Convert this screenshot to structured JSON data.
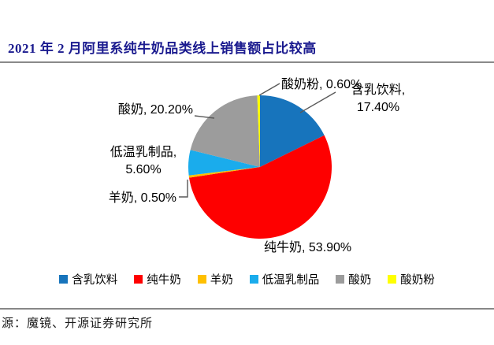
{
  "header": {
    "title": "2021 年 2 月阿里系纯牛奶品类线上销售额占比较高",
    "title_color": "#1b1b8f"
  },
  "chart_data": {
    "type": "pie",
    "title": "2021 年 2 月阿里系纯牛奶品类线上销售额占比较高",
    "categories": [
      "含乳饮料",
      "纯牛奶",
      "羊奶",
      "低温乳制品",
      "酸奶",
      "酸奶粉"
    ],
    "values": [
      17.4,
      53.9,
      0.5,
      5.6,
      20.2,
      0.6
    ],
    "unit": "%",
    "colors": [
      "#1774bc",
      "#fe0000",
      "#ffc000",
      "#1aacec",
      "#9c9c9c",
      "#ffff00"
    ],
    "start_angle_deg": 0,
    "direction": "clockwise",
    "legend_position": "bottom",
    "leader_line_color": "#595959"
  },
  "annotations": {
    "suannaifen": "酸奶粉, 0.60%",
    "hanruyinliao_line1": "含乳饮料,",
    "hanruyinliao_line2": "17.40%",
    "suannai": "酸奶, 20.20%",
    "diwenruzhipin_line1": "低温乳制品,",
    "diwenruzhipin_line2": "5.60%",
    "yangnai": "羊奶, 0.50%",
    "chunniunai": "纯牛奶, 53.90%"
  },
  "source": {
    "text": "源：魔镜、开源证券研究所"
  }
}
